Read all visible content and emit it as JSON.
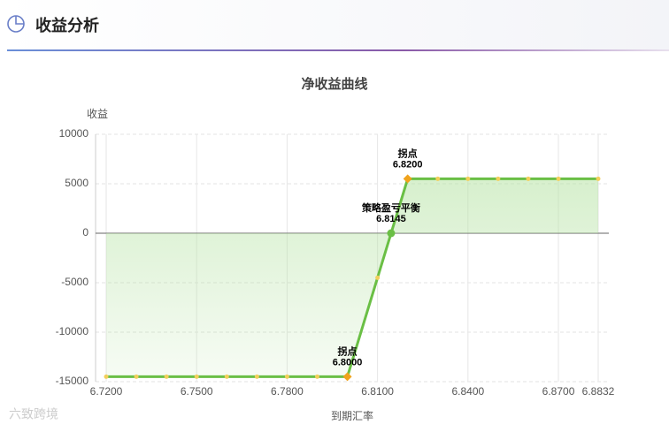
{
  "header": {
    "title": "收益分析"
  },
  "watermark": "六致跨境",
  "chart_data": {
    "type": "line",
    "title": "净收益曲线",
    "y_label": "收益",
    "x_label": "到期汇率",
    "x": [
      6.72,
      6.73,
      6.74,
      6.75,
      6.76,
      6.77,
      6.78,
      6.79,
      6.8,
      6.81,
      6.8145,
      6.82,
      6.83,
      6.84,
      6.85,
      6.86,
      6.87,
      6.8832
    ],
    "series": [
      {
        "name": "净收益",
        "color": "#6abf45",
        "marker_color": "#f2cf5b",
        "values": [
          -14500,
          -14500,
          -14500,
          -14500,
          -14500,
          -14500,
          -14500,
          -14500,
          -14500,
          -4500,
          0,
          5500,
          5500,
          5500,
          5500,
          5500,
          5500,
          5500
        ]
      }
    ],
    "area": true,
    "area_color": "#b6e3a4",
    "annotations": [
      {
        "text": "拐点",
        "x": 6.8,
        "x_label": "6.8000",
        "marker": "diamond",
        "color": "#f0a31c"
      },
      {
        "text": "策略盈亏平衡",
        "x": 6.8145,
        "x_label": "6.8145",
        "marker": "circle",
        "color": "#6abf45"
      },
      {
        "text": "拐点",
        "x": 6.82,
        "x_label": "6.8200",
        "marker": "diamond",
        "color": "#f0a31c"
      }
    ],
    "xlim": [
      6.72,
      6.8832
    ],
    "xticks": [
      {
        "value": 6.72,
        "label": "6.7200"
      },
      {
        "value": 6.75,
        "label": "6.7500"
      },
      {
        "value": 6.78,
        "label": "6.7800"
      },
      {
        "value": 6.81,
        "label": "6.8100"
      },
      {
        "value": 6.84,
        "label": "6.8400"
      },
      {
        "value": 6.87,
        "label": "6.8700"
      },
      {
        "value": 6.8832,
        "label": "6.8832"
      }
    ],
    "ylim": [
      -15000,
      10000
    ],
    "yticks": [
      -15000,
      -10000,
      -5000,
      0,
      5000,
      10000
    ],
    "grid": true
  }
}
